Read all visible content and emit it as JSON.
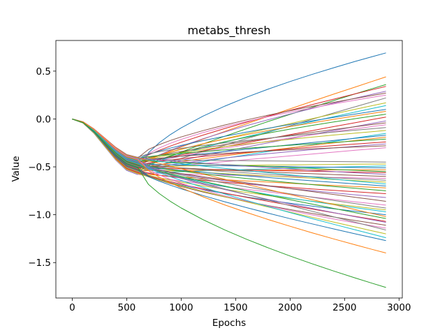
{
  "chart_data": {
    "type": "line",
    "title": "metabs_thresh",
    "xlabel": "Epochs",
    "ylabel": "Value",
    "xlim": [
      -150,
      3030
    ],
    "ylim": [
      -1.87,
      0.82
    ],
    "x_ticks": [
      0,
      500,
      1000,
      1500,
      2000,
      2500,
      3000
    ],
    "x_tick_labels": [
      "0",
      "500",
      "1000",
      "1500",
      "2000",
      "2500",
      "3000"
    ],
    "y_ticks": [
      0.5,
      0.0,
      -0.5,
      -1.0,
      -1.5
    ],
    "y_tick_labels": [
      "0.5",
      "0.0",
      "−0.5",
      "−1.0",
      "−1.5"
    ],
    "grid": false,
    "legend": "none",
    "x": [
      0,
      100,
      200,
      300,
      400,
      500,
      600,
      700,
      800,
      900,
      1000,
      1200,
      1400,
      1600,
      1800,
      2000,
      2200,
      2400,
      2600,
      2750,
      2880
    ],
    "series_colors": [
      "#1f77b4",
      "#ff7f0e",
      "#2ca02c",
      "#d62728",
      "#9467bd",
      "#8c564b",
      "#e377c2",
      "#7f7f7f",
      "#bcbd22",
      "#17becf"
    ],
    "series_endpoints": [
      0.69,
      0.44,
      0.36,
      0.34,
      0.29,
      0.27,
      0.25,
      0.22,
      0.17,
      0.14,
      0.1,
      0.08,
      0.05,
      0.02,
      -0.02,
      -0.04,
      -0.06,
      -0.09,
      -0.12,
      -0.15,
      -0.17,
      -0.19,
      -0.21,
      -0.24,
      -0.26,
      -0.28,
      -0.3,
      -0.45,
      -0.47,
      -0.49,
      -0.51,
      -0.53,
      -0.55,
      -0.56,
      -0.58,
      -0.6,
      -0.62,
      -0.64,
      -0.66,
      -0.68,
      -0.7,
      -0.72,
      -0.75,
      -0.78,
      -0.82,
      -0.86,
      -0.9,
      -0.93,
      -0.95,
      -0.97,
      -1.0,
      -1.02,
      -1.04,
      -1.07,
      -1.08,
      -1.11,
      -1.14,
      -1.16,
      -1.2,
      -1.24,
      -1.27,
      -1.4,
      -1.76
    ],
    "dip_min": -0.58,
    "dip_max": -0.4
  }
}
